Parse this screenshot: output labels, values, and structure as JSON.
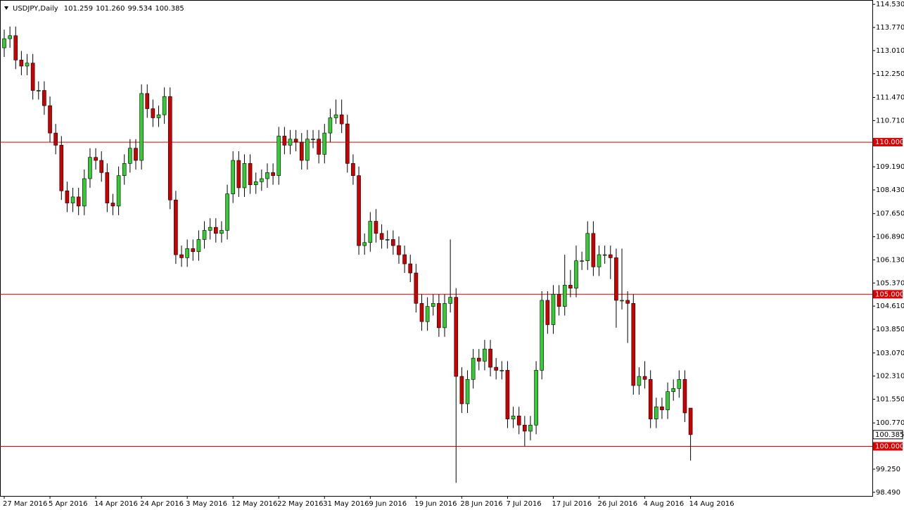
{
  "chart_data": {
    "type": "candlestick",
    "title": "USDJPY,Daily",
    "quote": [
      "101.259",
      "101.260",
      "99.534",
      "100.385"
    ],
    "categories": [
      "27 Mar 2016",
      null,
      null,
      null,
      null,
      null,
      null,
      null,
      "5 Apr 2016",
      null,
      null,
      null,
      null,
      null,
      null,
      null,
      "14 Apr 2016",
      null,
      null,
      null,
      null,
      null,
      null,
      null,
      "24 Apr 2016",
      null,
      null,
      null,
      null,
      null,
      null,
      null,
      "3 May 2016",
      null,
      null,
      null,
      null,
      null,
      null,
      null,
      "12 May 2016",
      null,
      null,
      null,
      null,
      null,
      null,
      null,
      "22 May 2016",
      null,
      null,
      null,
      null,
      null,
      null,
      null,
      "31 May 2016",
      null,
      null,
      null,
      null,
      null,
      null,
      null,
      "9 Jun 2016",
      null,
      null,
      null,
      null,
      null,
      null,
      null,
      "19 Jun 2016",
      null,
      null,
      null,
      null,
      null,
      null,
      null,
      "28 Jun 2016",
      null,
      null,
      null,
      null,
      null,
      null,
      null,
      "7 Jul 2016",
      null,
      null,
      null,
      null,
      null,
      null,
      null,
      "17 Jul 2016",
      null,
      null,
      null,
      null,
      null,
      null,
      null,
      "26 Jul 2016",
      null,
      null,
      null,
      null,
      null,
      null,
      null,
      "4 Aug 2016",
      null,
      null,
      null,
      null,
      null,
      null,
      null,
      "14 Aug 2016"
    ],
    "open": [
      113.1,
      113.4,
      113.5,
      112.7,
      112.5,
      112.6,
      111.7,
      111.7,
      111.2,
      110.3,
      109.9,
      108.4,
      108.0,
      108.2,
      107.9,
      108.8,
      109.5,
      109.4,
      109.0,
      108.0,
      107.9,
      108.9,
      109.3,
      109.8,
      109.4,
      111.6,
      111.1,
      110.8,
      110.9,
      111.5,
      108.1,
      106.3,
      106.2,
      106.5,
      106.4,
      106.8,
      107.1,
      107.2,
      107.0,
      107.1,
      108.3,
      109.4,
      108.5,
      109.3,
      108.6,
      108.7,
      108.8,
      109.0,
      108.9,
      110.2,
      109.9,
      110.1,
      110.0,
      109.4,
      110.1,
      110.1,
      109.6,
      110.3,
      110.8,
      110.9,
      110.6,
      109.3,
      108.9,
      106.6,
      106.7,
      107.4,
      107.0,
      106.8,
      106.8,
      106.6,
      106.3,
      106.0,
      105.7,
      104.7,
      104.1,
      104.6,
      104.7,
      103.9,
      104.7,
      104.9,
      102.3,
      101.4,
      102.2,
      102.9,
      102.8,
      103.2,
      102.6,
      102.5,
      102.5,
      100.9,
      101.0,
      100.7,
      100.5,
      100.7,
      102.5,
      104.8,
      104.0,
      105.0,
      104.6,
      105.3,
      105.2,
      106.1,
      106.1,
      107.0,
      105.9,
      106.3,
      106.3,
      106.2,
      104.8,
      104.8,
      104.7,
      102.0,
      102.3,
      102.2,
      100.9,
      101.3,
      101.2,
      101.8,
      101.9,
      102.2,
      101.259
    ],
    "high": [
      113.7,
      113.8,
      113.8,
      113.0,
      112.9,
      112.9,
      112.0,
      112.0,
      111.5,
      110.6,
      110.2,
      108.7,
      108.5,
      108.5,
      109.1,
      109.8,
      109.8,
      109.7,
      109.3,
      108.3,
      109.2,
      109.6,
      110.1,
      110.1,
      111.9,
      111.9,
      111.4,
      111.2,
      111.8,
      111.8,
      108.4,
      106.6,
      106.8,
      106.8,
      107.1,
      107.4,
      107.5,
      107.5,
      107.4,
      108.6,
      109.7,
      109.7,
      109.6,
      109.6,
      109.0,
      109.1,
      109.3,
      109.3,
      110.5,
      110.5,
      110.4,
      110.4,
      110.3,
      110.4,
      110.4,
      110.4,
      110.6,
      111.1,
      111.4,
      111.4,
      110.9,
      109.6,
      109.2,
      107.0,
      107.7,
      107.8,
      107.3,
      107.1,
      107.1,
      106.9,
      106.6,
      106.3,
      106.0,
      105.0,
      104.9,
      105.0,
      105.0,
      105.0,
      106.8,
      105.2,
      102.6,
      102.5,
      103.2,
      103.2,
      103.5,
      103.5,
      102.9,
      102.8,
      102.8,
      101.3,
      101.3,
      101.0,
      101.0,
      102.8,
      105.1,
      105.1,
      105.3,
      105.3,
      106.3,
      105.8,
      106.6,
      106.4,
      107.4,
      107.4,
      106.6,
      106.6,
      106.6,
      106.5,
      106.5,
      105.1,
      105.0,
      102.6,
      102.8,
      102.5,
      101.6,
      101.6,
      102.1,
      102.2,
      102.5,
      102.5,
      101.26
    ],
    "low": [
      112.8,
      113.1,
      112.4,
      112.2,
      112.2,
      111.4,
      111.4,
      110.9,
      110.0,
      109.6,
      108.1,
      107.7,
      107.7,
      107.6,
      107.6,
      108.5,
      109.1,
      108.7,
      107.7,
      107.6,
      107.6,
      108.6,
      109.0,
      109.1,
      109.1,
      110.8,
      110.5,
      110.5,
      110.6,
      107.8,
      106.0,
      105.9,
      105.9,
      106.1,
      106.1,
      106.5,
      106.8,
      106.7,
      106.7,
      106.8,
      108.0,
      108.2,
      108.2,
      108.3,
      108.3,
      108.4,
      108.5,
      108.6,
      108.6,
      109.6,
      109.6,
      109.7,
      109.1,
      109.1,
      109.8,
      109.3,
      109.3,
      110.0,
      110.6,
      110.3,
      109.0,
      108.6,
      106.3,
      106.3,
      106.4,
      106.7,
      106.5,
      106.5,
      106.3,
      106.0,
      105.7,
      105.4,
      104.4,
      103.8,
      103.8,
      104.3,
      103.6,
      103.6,
      104.4,
      98.8,
      101.1,
      101.1,
      101.9,
      102.5,
      102.5,
      102.3,
      102.2,
      102.2,
      100.6,
      100.6,
      100.4,
      100.0,
      100.2,
      100.4,
      102.2,
      103.7,
      103.7,
      104.3,
      104.3,
      104.9,
      104.9,
      105.8,
      105.8,
      105.6,
      105.6,
      106.0,
      105.5,
      103.9,
      104.5,
      103.4,
      101.7,
      101.7,
      101.9,
      100.6,
      100.6,
      100.9,
      100.9,
      101.5,
      101.6,
      100.8,
      99.534
    ],
    "close": [
      113.4,
      113.5,
      112.7,
      112.5,
      112.6,
      111.7,
      111.7,
      111.2,
      110.3,
      109.9,
      108.4,
      108.0,
      108.2,
      107.9,
      108.8,
      109.5,
      109.4,
      109.0,
      108.0,
      107.9,
      108.9,
      109.3,
      109.8,
      109.4,
      111.6,
      111.1,
      110.8,
      110.9,
      111.5,
      108.1,
      106.3,
      106.2,
      106.5,
      106.4,
      106.8,
      107.1,
      107.2,
      107.0,
      107.1,
      108.3,
      109.4,
      108.5,
      109.3,
      108.6,
      108.7,
      108.8,
      109.0,
      108.9,
      110.2,
      109.9,
      110.1,
      110.0,
      109.4,
      110.1,
      110.1,
      109.6,
      110.3,
      110.8,
      110.9,
      110.6,
      109.3,
      108.9,
      106.6,
      106.7,
      107.4,
      107.0,
      106.8,
      106.8,
      106.6,
      106.3,
      106.0,
      105.7,
      104.7,
      104.1,
      104.6,
      104.7,
      103.9,
      104.7,
      104.9,
      102.3,
      101.4,
      102.2,
      102.9,
      102.8,
      103.2,
      102.6,
      102.5,
      102.5,
      100.9,
      101.0,
      100.7,
      100.5,
      100.7,
      102.5,
      104.8,
      104.0,
      105.0,
      104.6,
      105.3,
      105.2,
      106.1,
      106.1,
      107.0,
      105.9,
      106.3,
      106.3,
      106.2,
      104.8,
      104.8,
      104.7,
      102.0,
      102.3,
      102.2,
      100.9,
      101.3,
      101.2,
      101.8,
      101.9,
      102.2,
      101.1,
      100.385
    ],
    "up_color": "#33cc33",
    "down_color": "#cc0000",
    "outline_color": "#000000",
    "line_color": "#dd0000",
    "ylim": [
      98.37,
      114.65
    ],
    "yticks": [
      {
        "value": 114.53,
        "label": "114.530"
      },
      {
        "value": 113.77,
        "label": "113.770"
      },
      {
        "value": 113.01,
        "label": "113.010"
      },
      {
        "value": 112.25,
        "label": "112.250"
      },
      {
        "value": 111.47,
        "label": "111.470"
      },
      {
        "value": 110.71,
        "label": "110.710"
      },
      {
        "value": 109.19,
        "label": "109.190"
      },
      {
        "value": 108.43,
        "label": "108.430"
      },
      {
        "value": 107.65,
        "label": "107.650"
      },
      {
        "value": 106.89,
        "label": "106.890"
      },
      {
        "value": 106.13,
        "label": "106.130"
      },
      {
        "value": 105.37,
        "label": "105.370"
      },
      {
        "value": 104.61,
        "label": "104.610"
      },
      {
        "value": 103.85,
        "label": "103.850"
      },
      {
        "value": 103.07,
        "label": "103.070"
      },
      {
        "value": 102.31,
        "label": "102.310"
      },
      {
        "value": 101.55,
        "label": "101.550"
      },
      {
        "value": 100.77,
        "label": "100.770"
      },
      {
        "value": 99.25,
        "label": "99.250"
      },
      {
        "value": 98.49,
        "label": "98.490"
      }
    ],
    "hlines": [
      {
        "value": 110,
        "label": "110.000"
      },
      {
        "value": 105,
        "label": "105.000"
      },
      {
        "value": 100,
        "label": "100.000"
      }
    ],
    "current": {
      "value": 100.385,
      "label": "100.385"
    }
  }
}
